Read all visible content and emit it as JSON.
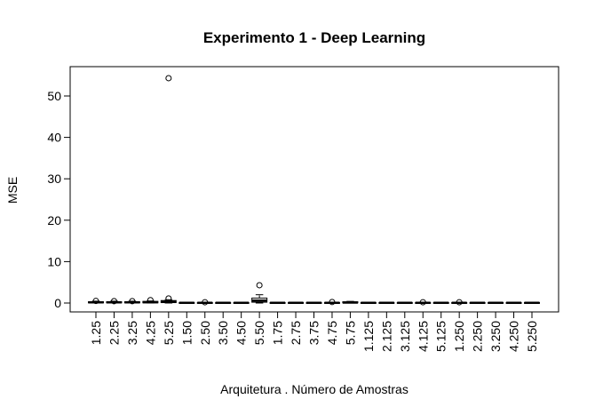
{
  "chart_data": {
    "type": "boxplot",
    "title": "Experimento 1 - Deep Learning",
    "xlabel": "Arquitetura . Número de Amostras",
    "ylabel": "MSE",
    "ylim": [
      -2,
      56
    ],
    "yticks": [
      0,
      10,
      20,
      30,
      40,
      50
    ],
    "categories": [
      "1.25",
      "2.25",
      "3.25",
      "4.25",
      "5.25",
      "1.50",
      "2.50",
      "3.50",
      "4.50",
      "5.50",
      "1.75",
      "2.75",
      "3.75",
      "4.75",
      "5.75",
      "1.125",
      "2.125",
      "3.125",
      "4.125",
      "5.125",
      "1.250",
      "2.250",
      "3.250",
      "4.250",
      "5.250"
    ],
    "series": [
      {
        "category": "1.25",
        "min": 0.0,
        "q1": 0.05,
        "median": 0.15,
        "q3": 0.3,
        "max": 0.45,
        "outliers": [
          0.5
        ]
      },
      {
        "category": "2.25",
        "min": 0.0,
        "q1": 0.05,
        "median": 0.15,
        "q3": 0.3,
        "max": 0.45,
        "outliers": [
          0.45
        ]
      },
      {
        "category": "3.25",
        "min": 0.0,
        "q1": 0.05,
        "median": 0.15,
        "q3": 0.3,
        "max": 0.45,
        "outliers": [
          0.45
        ]
      },
      {
        "category": "4.25",
        "min": 0.0,
        "q1": 0.05,
        "median": 0.2,
        "q3": 0.4,
        "max": 0.5,
        "outliers": [
          0.7
        ]
      },
      {
        "category": "5.25",
        "min": 0.0,
        "q1": 0.1,
        "median": 0.3,
        "q3": 0.6,
        "max": 0.8,
        "outliers": [
          1.1,
          54.3
        ]
      },
      {
        "category": "1.50",
        "min": 0.0,
        "q1": 0.02,
        "median": 0.05,
        "q3": 0.1,
        "max": 0.15,
        "outliers": []
      },
      {
        "category": "2.50",
        "min": 0.0,
        "q1": 0.02,
        "median": 0.05,
        "q3": 0.1,
        "max": 0.15,
        "outliers": [
          0.2
        ]
      },
      {
        "category": "3.50",
        "min": 0.0,
        "q1": 0.02,
        "median": 0.05,
        "q3": 0.1,
        "max": 0.15,
        "outliers": []
      },
      {
        "category": "4.50",
        "min": 0.0,
        "q1": 0.02,
        "median": 0.05,
        "q3": 0.1,
        "max": 0.15,
        "outliers": []
      },
      {
        "category": "5.50",
        "min": 0.0,
        "q1": 0.2,
        "median": 0.6,
        "q3": 1.2,
        "max": 2.0,
        "outliers": [
          4.3
        ]
      },
      {
        "category": "1.75",
        "min": 0.0,
        "q1": 0.02,
        "median": 0.05,
        "q3": 0.1,
        "max": 0.15,
        "outliers": []
      },
      {
        "category": "2.75",
        "min": 0.0,
        "q1": 0.02,
        "median": 0.05,
        "q3": 0.1,
        "max": 0.15,
        "outliers": []
      },
      {
        "category": "3.75",
        "min": 0.0,
        "q1": 0.02,
        "median": 0.05,
        "q3": 0.1,
        "max": 0.15,
        "outliers": []
      },
      {
        "category": "4.75",
        "min": 0.0,
        "q1": 0.02,
        "median": 0.05,
        "q3": 0.1,
        "max": 0.15,
        "outliers": [
          0.25
        ]
      },
      {
        "category": "5.75",
        "min": 0.0,
        "q1": 0.05,
        "median": 0.1,
        "q3": 0.3,
        "max": 0.4,
        "outliers": []
      },
      {
        "category": "1.125",
        "min": 0.0,
        "q1": 0.02,
        "median": 0.05,
        "q3": 0.1,
        "max": 0.15,
        "outliers": []
      },
      {
        "category": "2.125",
        "min": 0.0,
        "q1": 0.02,
        "median": 0.05,
        "q3": 0.1,
        "max": 0.15,
        "outliers": []
      },
      {
        "category": "3.125",
        "min": 0.0,
        "q1": 0.02,
        "median": 0.05,
        "q3": 0.1,
        "max": 0.15,
        "outliers": []
      },
      {
        "category": "4.125",
        "min": 0.0,
        "q1": 0.02,
        "median": 0.05,
        "q3": 0.1,
        "max": 0.15,
        "outliers": [
          0.2
        ]
      },
      {
        "category": "5.125",
        "min": 0.0,
        "q1": 0.02,
        "median": 0.05,
        "q3": 0.1,
        "max": 0.15,
        "outliers": []
      },
      {
        "category": "1.250",
        "min": 0.0,
        "q1": 0.02,
        "median": 0.05,
        "q3": 0.1,
        "max": 0.15,
        "outliers": [
          0.2
        ]
      },
      {
        "category": "2.250",
        "min": 0.0,
        "q1": 0.02,
        "median": 0.05,
        "q3": 0.1,
        "max": 0.15,
        "outliers": []
      },
      {
        "category": "3.250",
        "min": 0.0,
        "q1": 0.02,
        "median": 0.05,
        "q3": 0.1,
        "max": 0.15,
        "outliers": []
      },
      {
        "category": "4.250",
        "min": 0.0,
        "q1": 0.02,
        "median": 0.05,
        "q3": 0.1,
        "max": 0.15,
        "outliers": []
      },
      {
        "category": "5.250",
        "min": 0.0,
        "q1": 0.02,
        "median": 0.05,
        "q3": 0.1,
        "max": 0.15,
        "outliers": []
      }
    ],
    "grid": false,
    "legend": "none",
    "colors": {
      "box_fill": "#ffffff",
      "stroke": "#000000",
      "background": "#ffffff"
    }
  }
}
